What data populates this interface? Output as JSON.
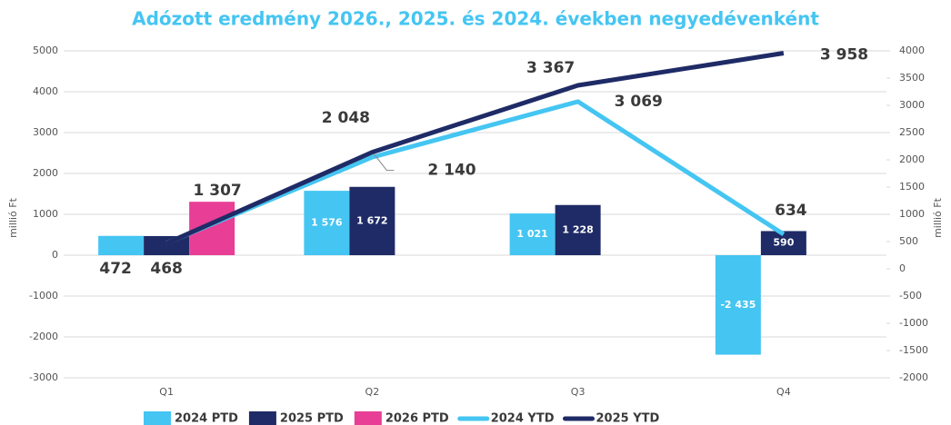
{
  "chart_data": {
    "type": "bar",
    "title": "Adózott eredmény 2026., 2025. és 2024. években negyedévenként",
    "y_label": "millió Ft",
    "y2_label": "millió Ft",
    "categories": [
      "Q1",
      "Q2",
      "Q3",
      "Q4"
    ],
    "ylim": [
      -3000,
      5000
    ],
    "yticks": [
      -3000,
      -2000,
      -1000,
      0,
      1000,
      2000,
      3000,
      4000,
      5000
    ],
    "y2lim": [
      -2000,
      4000
    ],
    "y2ticks": [
      -2000,
      -1500,
      -1000,
      -500,
      0,
      500,
      1000,
      1500,
      2000,
      2500,
      3000,
      3500,
      4000
    ],
    "grid": true,
    "series": [
      {
        "name": "2024 PTD",
        "type": "bar",
        "color": "#45c5f2",
        "values": [
          472,
          1576,
          1021,
          -2435
        ],
        "value_labels": [
          "472",
          "1 576",
          "1 021",
          "-2 435"
        ]
      },
      {
        "name": "2025 PTD",
        "type": "bar",
        "color": "#1f2b66",
        "values": [
          468,
          1672,
          1228,
          590
        ],
        "value_labels": [
          "468",
          "1 672",
          "1 228",
          "590"
        ]
      },
      {
        "name": "2026 PTD",
        "type": "bar",
        "color": "#e83e96",
        "values": [
          1307,
          null,
          null,
          null
        ],
        "value_labels": [
          "1 307",
          null,
          null,
          null
        ]
      },
      {
        "name": "2024 YTD",
        "type": "line",
        "axis": "y2",
        "color": "#45c5f2",
        "values": [
          472,
          2048,
          3069,
          634
        ],
        "value_labels": [
          null,
          "2 048",
          "3 069",
          "634"
        ]
      },
      {
        "name": "2025 YTD",
        "type": "line",
        "axis": "y2",
        "color": "#1f2b66",
        "values": [
          468,
          2140,
          3367,
          3958
        ],
        "value_labels": [
          null,
          "2 140",
          "3 367",
          "3 958"
        ]
      }
    ]
  }
}
